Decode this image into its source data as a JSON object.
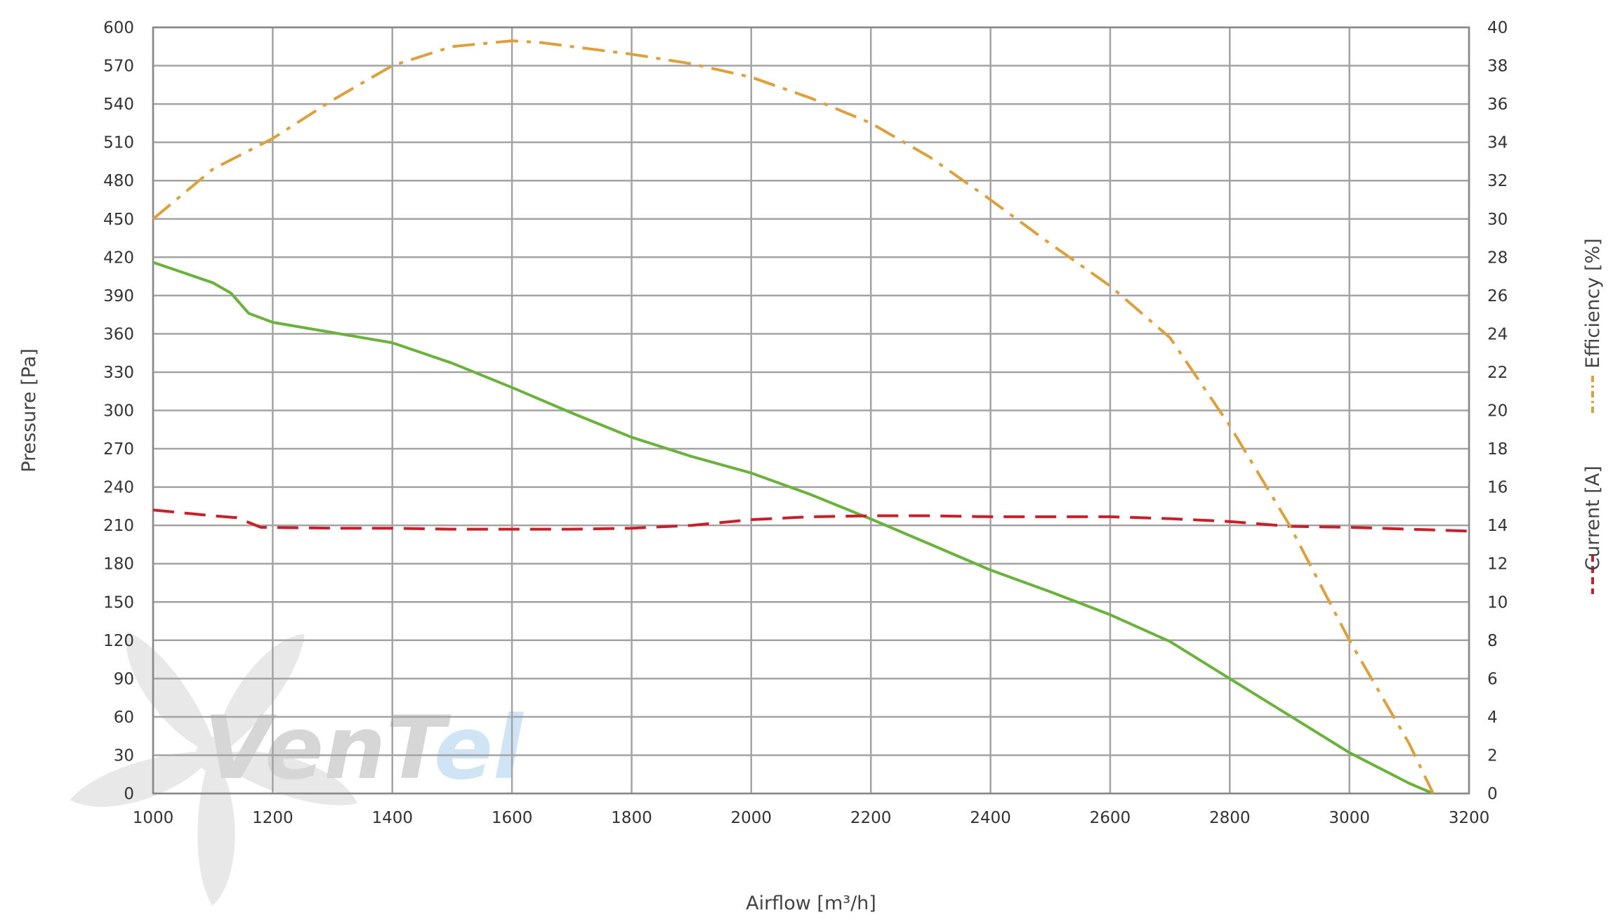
{
  "chart_data": {
    "type": "line",
    "xlabel": "Airflow [m³/h]",
    "ylabel": "Pressure [Pa]",
    "x_ticks": [
      1000,
      1200,
      1400,
      1600,
      1800,
      2000,
      2200,
      2400,
      2600,
      2800,
      3000,
      3200
    ],
    "y_left_ticks": [
      0,
      30,
      60,
      90,
      120,
      150,
      180,
      210,
      240,
      270,
      300,
      330,
      360,
      390,
      420,
      450,
      480,
      510,
      540,
      570,
      600
    ],
    "y_right_ticks": [
      0,
      2,
      4,
      6,
      8,
      10,
      12,
      14,
      16,
      18,
      20,
      22,
      24,
      26,
      28,
      30,
      32,
      34,
      36,
      38,
      40
    ],
    "xlim": [
      1000,
      3200
    ],
    "ylim_left": [
      0,
      600
    ],
    "ylim_right": [
      0,
      40
    ],
    "grid": true,
    "legend_position": "right",
    "series": [
      {
        "key": "pressure",
        "axis": "left",
        "color": "#6ab23c",
        "style": "solid",
        "x": [
          1000,
          1050,
          1100,
          1130,
          1160,
          1200,
          1300,
          1400,
          1500,
          1600,
          1700,
          1800,
          1900,
          2000,
          2100,
          2200,
          2300,
          2400,
          2500,
          2600,
          2700,
          2800,
          2900,
          3000,
          3100,
          3140
        ],
        "y": [
          416,
          408,
          400,
          392,
          376,
          369,
          361,
          353,
          337,
          318,
          298,
          279,
          264,
          251,
          234,
          215,
          195,
          175,
          158,
          140,
          119,
          90,
          61,
          32,
          8,
          0
        ]
      },
      {
        "key": "current",
        "name": "Current [A]",
        "axis": "right",
        "color": "#c8202a",
        "style": "dashed",
        "x": [
          1000,
          1100,
          1140,
          1180,
          1300,
          1400,
          1500,
          1600,
          1700,
          1800,
          1900,
          2000,
          2100,
          2200,
          2300,
          2400,
          2500,
          2600,
          2700,
          2800,
          2900,
          3000,
          3100,
          3200
        ],
        "y": [
          14.8,
          14.5,
          14.4,
          13.9,
          13.85,
          13.85,
          13.8,
          13.8,
          13.8,
          13.85,
          14.0,
          14.3,
          14.45,
          14.5,
          14.5,
          14.45,
          14.45,
          14.45,
          14.35,
          14.2,
          13.95,
          13.9,
          13.8,
          13.7
        ]
      },
      {
        "key": "efficiency",
        "name": "Efficiency [%]",
        "axis": "right",
        "color": "#dca03c",
        "style": "dashdot",
        "x": [
          1000,
          1100,
          1200,
          1300,
          1400,
          1500,
          1600,
          1650,
          1700,
          1800,
          1900,
          2000,
          2100,
          2200,
          2300,
          2400,
          2500,
          2600,
          2700,
          2800,
          2900,
          3000,
          3100,
          3140
        ],
        "y": [
          30.0,
          32.6,
          34.2,
          36.2,
          38.0,
          39.0,
          39.3,
          39.2,
          39.0,
          38.6,
          38.1,
          37.4,
          36.3,
          35.0,
          33.2,
          31.0,
          28.7,
          26.5,
          23.8,
          19.2,
          14.0,
          8.0,
          2.6,
          0
        ]
      }
    ],
    "legend": [
      {
        "label": "Current [A]",
        "color": "#c8202a",
        "style": "dashed"
      },
      {
        "label": "Efficiency [%]",
        "color": "#dca03c",
        "style": "dashdot"
      }
    ]
  },
  "watermark": {
    "logo_text_part1": "VenT",
    "logo_text_part2": "el",
    "colors": {
      "dark": "#d6d6d6",
      "light": "#cfe5f6",
      "fan": "#e8e8e8"
    }
  }
}
